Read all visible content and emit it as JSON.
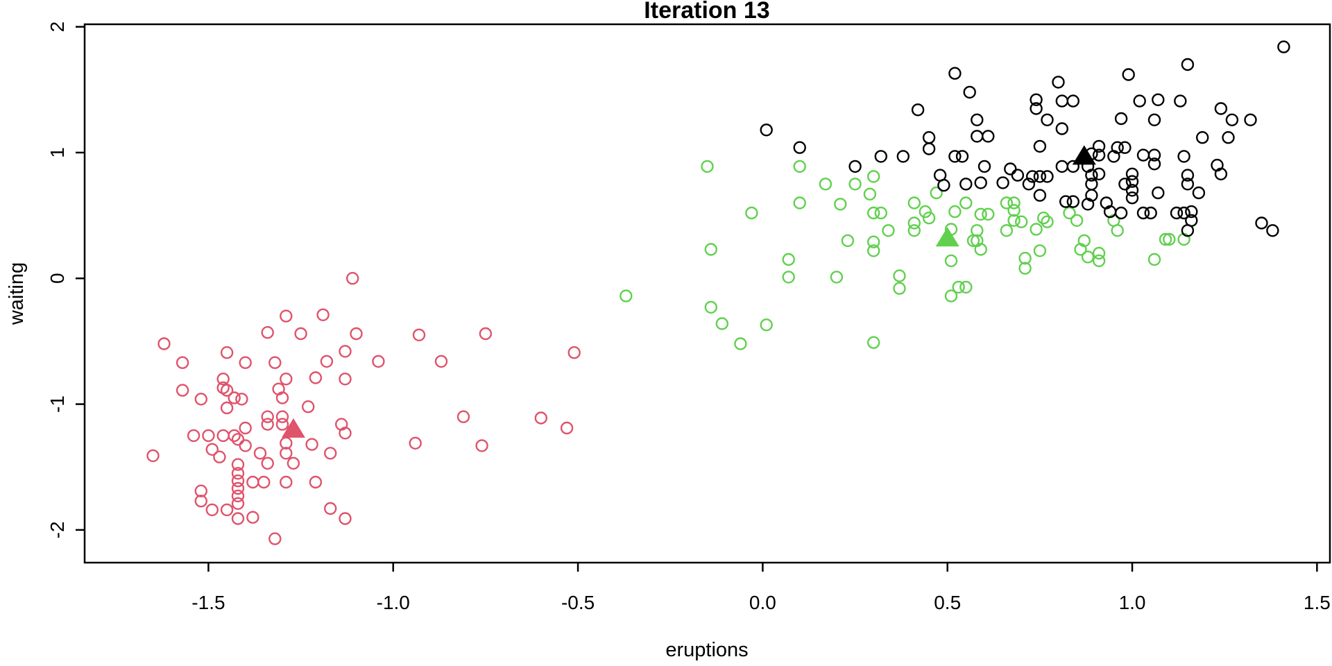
{
  "chart_data": {
    "type": "scatter",
    "title": "Iteration 13",
    "xlabel": "eruptions",
    "ylabel": "waiting",
    "xlim": [
      -1.835,
      1.535
    ],
    "ylim": [
      -2.26,
      2.02
    ],
    "grid": false,
    "legend": "none",
    "x_ticks": [
      -1.5,
      -1.0,
      -0.5,
      0.0,
      0.5,
      1.0,
      1.5
    ],
    "x_tick_labels": [
      "-1.5",
      "-1.0",
      "-0.5",
      "0.0",
      "0.5",
      "1.0",
      "1.5"
    ],
    "y_ticks": [
      -2,
      -1,
      0,
      1,
      2
    ],
    "y_tick_labels": [
      "-2",
      "-1",
      "0",
      "1",
      "2"
    ],
    "marker": {
      "circle_radius": 8,
      "circle_stroke": 2.4,
      "triangle_half_width": 17,
      "triangle_up": 16,
      "triangle_down": 12
    },
    "frame_color": "#000000",
    "series": [
      {
        "name": "cluster-1-red",
        "color": "#DF536B",
        "marker": "circle-open",
        "points": [
          [
            -1.11,
            0.0
          ],
          [
            -1.29,
            -0.3
          ],
          [
            -1.19,
            -0.29
          ],
          [
            -1.34,
            -0.43
          ],
          [
            -1.25,
            -0.44
          ],
          [
            -1.1,
            -0.44
          ],
          [
            -0.93,
            -0.45
          ],
          [
            -0.75,
            -0.44
          ],
          [
            -1.62,
            -0.52
          ],
          [
            -1.45,
            -0.59
          ],
          [
            -0.51,
            -0.59
          ],
          [
            -1.57,
            -0.67
          ],
          [
            -1.4,
            -0.67
          ],
          [
            -1.32,
            -0.67
          ],
          [
            -1.18,
            -0.66
          ],
          [
            -1.04,
            -0.66
          ],
          [
            -0.87,
            -0.66
          ],
          [
            -1.13,
            -0.58
          ],
          [
            -1.46,
            -0.8
          ],
          [
            -1.29,
            -0.8
          ],
          [
            -1.21,
            -0.79
          ],
          [
            -1.13,
            -0.8
          ],
          [
            -1.46,
            -0.87
          ],
          [
            -1.57,
            -0.89
          ],
          [
            -1.45,
            -0.89
          ],
          [
            -1.31,
            -0.88
          ],
          [
            -1.52,
            -0.96
          ],
          [
            -1.43,
            -0.95
          ],
          [
            -1.41,
            -0.96
          ],
          [
            -1.3,
            -0.95
          ],
          [
            -1.45,
            -1.03
          ],
          [
            -1.23,
            -1.02
          ],
          [
            -1.34,
            -1.1
          ],
          [
            -1.3,
            -1.1
          ],
          [
            -0.81,
            -1.1
          ],
          [
            -0.6,
            -1.11
          ],
          [
            -1.34,
            -1.16
          ],
          [
            -1.3,
            -1.16
          ],
          [
            -1.14,
            -1.16
          ],
          [
            -0.53,
            -1.19
          ],
          [
            -1.13,
            -1.23
          ],
          [
            -1.54,
            -1.25
          ],
          [
            -1.5,
            -1.25
          ],
          [
            -1.46,
            -1.25
          ],
          [
            -1.43,
            -1.25
          ],
          [
            -1.4,
            -1.19
          ],
          [
            -1.42,
            -1.28
          ],
          [
            -1.4,
            -1.33
          ],
          [
            -1.29,
            -1.31
          ],
          [
            -1.22,
            -1.32
          ],
          [
            -0.94,
            -1.31
          ],
          [
            -0.76,
            -1.33
          ],
          [
            -1.65,
            -1.41
          ],
          [
            -1.49,
            -1.36
          ],
          [
            -1.47,
            -1.42
          ],
          [
            -1.36,
            -1.39
          ],
          [
            -1.29,
            -1.39
          ],
          [
            -1.17,
            -1.39
          ],
          [
            -1.34,
            -1.47
          ],
          [
            -1.27,
            -1.47
          ],
          [
            -1.42,
            -1.48
          ],
          [
            -1.42,
            -1.55
          ],
          [
            -1.42,
            -1.61
          ],
          [
            -1.38,
            -1.62
          ],
          [
            -1.35,
            -1.62
          ],
          [
            -1.29,
            -1.62
          ],
          [
            -1.21,
            -1.62
          ],
          [
            -1.52,
            -1.69
          ],
          [
            -1.52,
            -1.77
          ],
          [
            -1.42,
            -1.67
          ],
          [
            -1.42,
            -1.73
          ],
          [
            -1.42,
            -1.79
          ],
          [
            -1.49,
            -1.84
          ],
          [
            -1.45,
            -1.84
          ],
          [
            -1.42,
            -1.91
          ],
          [
            -1.38,
            -1.9
          ],
          [
            -1.17,
            -1.83
          ],
          [
            -1.13,
            -1.91
          ],
          [
            -1.32,
            -2.07
          ]
        ]
      },
      {
        "name": "cluster-2-green",
        "color": "#61D04F",
        "marker": "circle-open",
        "points": [
          [
            -0.37,
            -0.14
          ],
          [
            -0.15,
            0.89
          ],
          [
            -0.14,
            0.23
          ],
          [
            -0.14,
            -0.23
          ],
          [
            -0.11,
            -0.36
          ],
          [
            -0.06,
            -0.52
          ],
          [
            0.01,
            -0.37
          ],
          [
            0.1,
            0.89
          ],
          [
            0.1,
            0.6
          ],
          [
            0.07,
            0.15
          ],
          [
            0.07,
            0.01
          ],
          [
            0.17,
            0.75
          ],
          [
            0.25,
            0.75
          ],
          [
            0.3,
            0.81
          ],
          [
            0.21,
            0.59
          ],
          [
            0.29,
            0.67
          ],
          [
            -0.03,
            0.52
          ],
          [
            0.3,
            0.52
          ],
          [
            0.32,
            0.52
          ],
          [
            0.34,
            0.38
          ],
          [
            0.23,
            0.3
          ],
          [
            0.3,
            0.29
          ],
          [
            0.3,
            0.22
          ],
          [
            0.2,
            0.01
          ],
          [
            0.37,
            0.02
          ],
          [
            0.37,
            -0.08
          ],
          [
            0.3,
            -0.51
          ],
          [
            0.41,
            0.6
          ],
          [
            0.41,
            0.44
          ],
          [
            0.41,
            0.38
          ],
          [
            0.47,
            0.68
          ],
          [
            0.44,
            0.53
          ],
          [
            0.45,
            0.48
          ],
          [
            0.51,
            0.39
          ],
          [
            0.52,
            0.53
          ],
          [
            0.55,
            0.6
          ],
          [
            0.51,
            0.14
          ],
          [
            0.53,
            -0.07
          ],
          [
            0.55,
            -0.07
          ],
          [
            0.51,
            -0.14
          ],
          [
            0.57,
            0.3
          ],
          [
            0.58,
            0.3
          ],
          [
            0.59,
            0.23
          ],
          [
            0.58,
            0.38
          ],
          [
            0.59,
            0.51
          ],
          [
            0.61,
            0.51
          ],
          [
            0.66,
            0.6
          ],
          [
            0.68,
            0.6
          ],
          [
            0.68,
            0.54
          ],
          [
            0.68,
            0.46
          ],
          [
            0.7,
            0.45
          ],
          [
            0.66,
            0.38
          ],
          [
            0.71,
            0.16
          ],
          [
            0.71,
            0.08
          ],
          [
            0.74,
            0.39
          ],
          [
            0.77,
            0.45
          ],
          [
            0.75,
            0.22
          ],
          [
            0.76,
            0.48
          ],
          [
            0.83,
            0.52
          ],
          [
            0.85,
            0.46
          ],
          [
            0.87,
            0.3
          ],
          [
            0.86,
            0.23
          ],
          [
            0.88,
            0.17
          ],
          [
            0.91,
            0.2
          ],
          [
            0.91,
            0.14
          ],
          [
            0.95,
            0.46
          ],
          [
            0.96,
            0.38
          ],
          [
            1.06,
            0.15
          ],
          [
            1.09,
            0.31
          ],
          [
            1.1,
            0.31
          ],
          [
            1.14,
            0.31
          ]
        ]
      },
      {
        "name": "cluster-3-black",
        "color": "#000000",
        "marker": "circle-open",
        "points": [
          [
            0.01,
            1.18
          ],
          [
            0.1,
            1.04
          ],
          [
            0.25,
            0.89
          ],
          [
            0.42,
            1.34
          ],
          [
            0.52,
            1.63
          ],
          [
            0.56,
            1.48
          ],
          [
            0.58,
            1.26
          ],
          [
            0.45,
            1.12
          ],
          [
            0.45,
            1.03
          ],
          [
            0.32,
            0.97
          ],
          [
            0.38,
            0.97
          ],
          [
            0.52,
            0.97
          ],
          [
            0.54,
            0.97
          ],
          [
            0.58,
            1.13
          ],
          [
            0.61,
            1.13
          ],
          [
            0.6,
            0.89
          ],
          [
            0.48,
            0.82
          ],
          [
            0.49,
            0.74
          ],
          [
            0.55,
            0.75
          ],
          [
            0.59,
            0.76
          ],
          [
            0.65,
            0.76
          ],
          [
            0.67,
            0.87
          ],
          [
            0.69,
            0.82
          ],
          [
            0.74,
            1.42
          ],
          [
            0.74,
            1.35
          ],
          [
            0.77,
            1.26
          ],
          [
            0.81,
            1.19
          ],
          [
            0.75,
            1.05
          ],
          [
            0.8,
            1.56
          ],
          [
            0.81,
            1.41
          ],
          [
            0.84,
            1.41
          ],
          [
            0.99,
            1.62
          ],
          [
            1.02,
            1.41
          ],
          [
            1.07,
            1.42
          ],
          [
            1.13,
            1.41
          ],
          [
            0.97,
            1.27
          ],
          [
            1.06,
            1.26
          ],
          [
            1.15,
            1.7
          ],
          [
            1.41,
            1.84
          ],
          [
            1.24,
            1.35
          ],
          [
            1.27,
            1.26
          ],
          [
            1.32,
            1.26
          ],
          [
            1.19,
            1.12
          ],
          [
            1.26,
            1.12
          ],
          [
            0.73,
            0.81
          ],
          [
            0.75,
            0.81
          ],
          [
            0.77,
            0.81
          ],
          [
            0.72,
            0.75
          ],
          [
            0.75,
            0.66
          ],
          [
            0.81,
            0.89
          ],
          [
            0.84,
            0.89
          ],
          [
            0.89,
            0.99
          ],
          [
            0.91,
            1.05
          ],
          [
            0.91,
            0.98
          ],
          [
            0.95,
            0.97
          ],
          [
            0.96,
            1.04
          ],
          [
            0.98,
            1.04
          ],
          [
            0.88,
            0.89
          ],
          [
            0.89,
            0.82
          ],
          [
            0.91,
            0.83
          ],
          [
            0.89,
            0.75
          ],
          [
            0.89,
            0.66
          ],
          [
            0.88,
            0.59
          ],
          [
            0.82,
            0.61
          ],
          [
            0.84,
            0.61
          ],
          [
            0.93,
            0.6
          ],
          [
            0.94,
            0.53
          ],
          [
            0.97,
            0.52
          ],
          [
            1.0,
            0.83
          ],
          [
            1.0,
            0.77
          ],
          [
            0.98,
            0.75
          ],
          [
            1.0,
            0.7
          ],
          [
            1.0,
            0.64
          ],
          [
            1.03,
            0.98
          ],
          [
            1.06,
            0.98
          ],
          [
            1.06,
            0.91
          ],
          [
            1.07,
            0.68
          ],
          [
            1.03,
            0.52
          ],
          [
            1.05,
            0.52
          ],
          [
            1.12,
            0.52
          ],
          [
            1.14,
            0.52
          ],
          [
            1.16,
            0.53
          ],
          [
            1.16,
            0.46
          ],
          [
            1.15,
            0.38
          ],
          [
            1.14,
            0.97
          ],
          [
            1.15,
            0.82
          ],
          [
            1.15,
            0.75
          ],
          [
            1.18,
            0.68
          ],
          [
            1.23,
            0.9
          ],
          [
            1.24,
            0.83
          ],
          [
            1.35,
            0.44
          ],
          [
            1.38,
            0.38
          ]
        ]
      }
    ],
    "centroids": [
      {
        "name": "centroid-red",
        "color": "#DF536B",
        "marker": "triangle-filled",
        "x": -1.27,
        "y": -1.2
      },
      {
        "name": "centroid-green",
        "color": "#61D04F",
        "marker": "triangle-filled",
        "x": 0.5,
        "y": 0.32
      },
      {
        "name": "centroid-black",
        "color": "#000000",
        "marker": "triangle-filled",
        "x": 0.87,
        "y": 0.97
      }
    ]
  }
}
